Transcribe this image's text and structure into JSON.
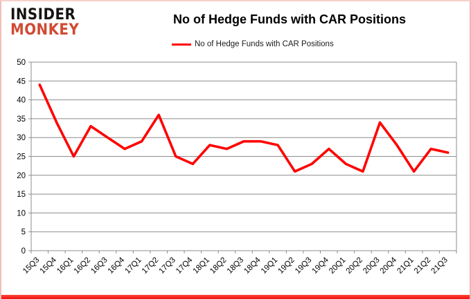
{
  "logo": {
    "line1": "INSIDER",
    "line2": "MONKEY",
    "line1_color": "#161413",
    "line2_color": "#d14a33"
  },
  "header": {
    "title": "No of Hedge Funds with CAR Positions"
  },
  "legend": {
    "label": "No of Hedge Funds with CAR Positions",
    "line_color": "#ff0000"
  },
  "chart_data": {
    "type": "line",
    "title": "No of Hedge Funds with CAR Positions",
    "series": [
      {
        "name": "No of Hedge Funds with CAR Positions",
        "color": "#ff0000",
        "values": [
          44,
          34,
          25,
          33,
          30,
          27,
          29,
          36,
          25,
          23,
          28,
          27,
          29,
          29,
          28,
          21,
          23,
          27,
          23,
          21,
          34,
          28,
          21,
          27,
          26
        ]
      }
    ],
    "categories": [
      "15Q3",
      "15Q4",
      "16Q1",
      "16Q2",
      "16Q3",
      "16Q4",
      "17Q1",
      "17Q2",
      "17Q3",
      "17Q4",
      "18Q1",
      "18Q2",
      "18Q3",
      "18Q4",
      "19Q1",
      "19Q2",
      "19Q3",
      "19Q4",
      "20Q1",
      "20Q2",
      "20Q3",
      "20Q4",
      "21Q1",
      "21Q2",
      "21Q3"
    ],
    "xlabel": "",
    "ylabel": "",
    "ylim": [
      0,
      50
    ],
    "ytick_step": 5,
    "grid": true,
    "legend_position": "top-center",
    "gridline_color": "#8c8c8c",
    "axis_text_color": "#000000"
  }
}
